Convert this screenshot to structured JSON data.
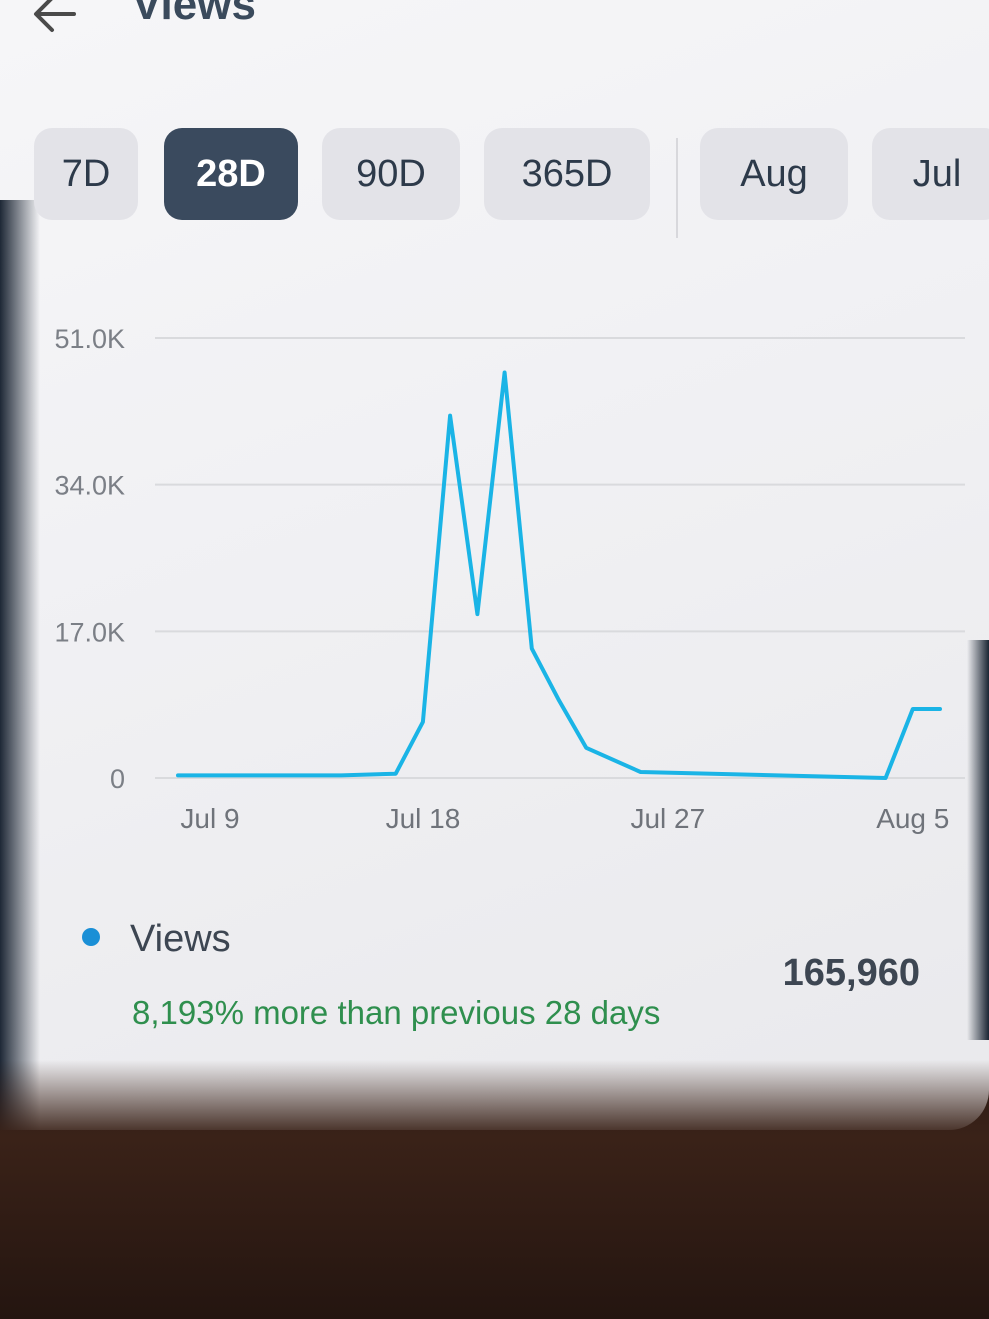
{
  "header": {
    "title": "Views",
    "back_icon": "arrow-left-icon"
  },
  "tabs": [
    {
      "label": "7D",
      "active": false
    },
    {
      "label": "28D",
      "active": true
    },
    {
      "label": "90D",
      "active": false
    },
    {
      "label": "365D",
      "active": false
    },
    {
      "label": "Aug",
      "active": false
    },
    {
      "label": "Jul",
      "active": false
    }
  ],
  "chart_data": {
    "type": "line",
    "x_tick_labels": [
      "Jul 9",
      "Jul 18",
      "Jul 27",
      "Aug 5"
    ],
    "y_tick_labels": [
      "0",
      "17.0K",
      "34.0K",
      "51.0K"
    ],
    "ylim": [
      0,
      51000
    ],
    "xlim": [
      "Jul 9",
      "Aug 6"
    ],
    "grid": true,
    "series": [
      {
        "name": "Views",
        "color": "#1ab4e6",
        "x": [
          "Jul 9",
          "Jul 15",
          "Jul 17",
          "Jul 18",
          "Jul 19",
          "Jul 20",
          "Jul 21",
          "Jul 22",
          "Jul 23",
          "Jul 24",
          "Jul 26",
          "Aug 4",
          "Aug 5",
          "Aug 6"
        ],
        "values": [
          300,
          300,
          500,
          6500,
          42000,
          19000,
          47000,
          15000,
          9000,
          3500,
          700,
          0,
          8000,
          8000
        ]
      }
    ]
  },
  "legend": {
    "label": "Views",
    "total": "165,960",
    "comparison": "8,193% more than previous 28 days"
  }
}
